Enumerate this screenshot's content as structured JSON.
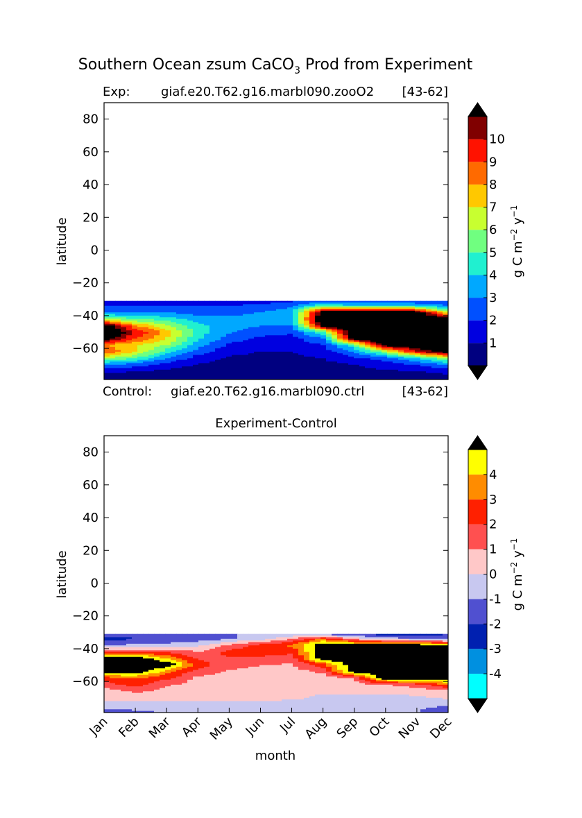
{
  "figure": {
    "title": "Southern Ocean zsum CaCO",
    "title_sub": "3",
    "title_rest": " Prod from Experiment"
  },
  "top_panel": {
    "exp_label": "Exp:",
    "exp_name": "giaf.e20.T62.g16.marbl090.zooO2",
    "exp_years": "[43-62]",
    "ctrl_label": "Control:",
    "ctrl_name": "giaf.e20.T62.g16.marbl090.ctrl",
    "ctrl_years": "[43-62]"
  },
  "bottom_panel": {
    "title": "Experiment-Control"
  },
  "chart_data": [
    {
      "type": "heatmap",
      "title": "Southern Ocean zsum CaCO3 Prod from Experiment",
      "xlabel": "",
      "ylabel": "latitude",
      "x_categories": [
        "Jan",
        "Feb",
        "Mar",
        "Apr",
        "May",
        "Jun",
        "Jul",
        "Aug",
        "Sep",
        "Oct",
        "Nov",
        "Dec"
      ],
      "y_ticks": [
        80,
        60,
        40,
        20,
        0,
        -20,
        -40,
        -60
      ],
      "ylim": [
        -79,
        90
      ],
      "data_extent_lat": [
        -79,
        -31
      ],
      "colorbar": {
        "label": "g C m-2 y-1",
        "ticks": [
          "1",
          "2",
          "3",
          "4",
          "5",
          "6",
          "7",
          "8",
          "9",
          "10"
        ],
        "levels": [
          0,
          1,
          2,
          3,
          4,
          5,
          6,
          7,
          8,
          9,
          10,
          11
        ],
        "colors": [
          "#000080",
          "#0000e0",
          "#0050ff",
          "#00a8ff",
          "#20f0d0",
          "#70ff80",
          "#c8ff30",
          "#ffc800",
          "#ff6a00",
          "#ff1200",
          "#800000"
        ],
        "extend": "both",
        "under_color": "#000000",
        "over_color": "#000000"
      },
      "field_description_lat_ranges_by_month": [
        {
          "month": "Jan",
          "high_band": [
            -52,
            -43
          ],
          "mid_band": [
            -64,
            -58
          ],
          "low_band": [
            -79,
            -65
          ]
        },
        {
          "month": "Apr",
          "high_band": [
            -48,
            -40
          ],
          "mid_band": [
            -60,
            -48
          ],
          "low_band": [
            -79,
            -62
          ]
        },
        {
          "month": "Jul",
          "high_band": [
            -40,
            -33
          ],
          "mid_band": [
            -48,
            -40
          ],
          "low_band": [
            -79,
            -48
          ]
        },
        {
          "month": "Sep",
          "high_band": [
            -60,
            -34
          ],
          "mid_band": [
            -66,
            -60
          ],
          "low_band": [
            -79,
            -68
          ]
        },
        {
          "month": "Dec",
          "high_band": [
            -62,
            -36
          ],
          "mid_band": [
            -68,
            -62
          ],
          "low_band": [
            -79,
            -72
          ]
        }
      ],
      "annotations": [
        "Exp: giaf.e20.T62.g16.marbl090.zooO2 [43-62]",
        "Control: giaf.e20.T62.g16.marbl090.ctrl [43-62]"
      ]
    },
    {
      "type": "heatmap",
      "title": "Experiment-Control",
      "xlabel": "month",
      "ylabel": "latitude",
      "x_categories": [
        "Jan",
        "Feb",
        "Mar",
        "Apr",
        "May",
        "Jun",
        "Jul",
        "Aug",
        "Sep",
        "Oct",
        "Nov",
        "Dec"
      ],
      "y_ticks": [
        80,
        60,
        40,
        20,
        0,
        -20,
        -40,
        -60
      ],
      "ylim": [
        -79,
        90
      ],
      "data_extent_lat": [
        -79,
        -31
      ],
      "colorbar": {
        "label": "g C m-2 y-1",
        "ticks": [
          "-4",
          "-3",
          "-2",
          "-1",
          "0",
          "1",
          "2",
          "3",
          "4"
        ],
        "levels": [
          -5,
          -4,
          -3,
          -2,
          -1,
          0,
          1,
          2,
          3,
          4,
          5
        ],
        "colors": [
          "#00ffff",
          "#0090e0",
          "#0020b0",
          "#5050d0",
          "#c8c8f0",
          "#ffc8c8",
          "#ff5050",
          "#ff2000",
          "#ff8c00",
          "#ffff00"
        ],
        "extend": "both",
        "under_color": "#000000",
        "over_color": "#000000"
      }
    }
  ]
}
